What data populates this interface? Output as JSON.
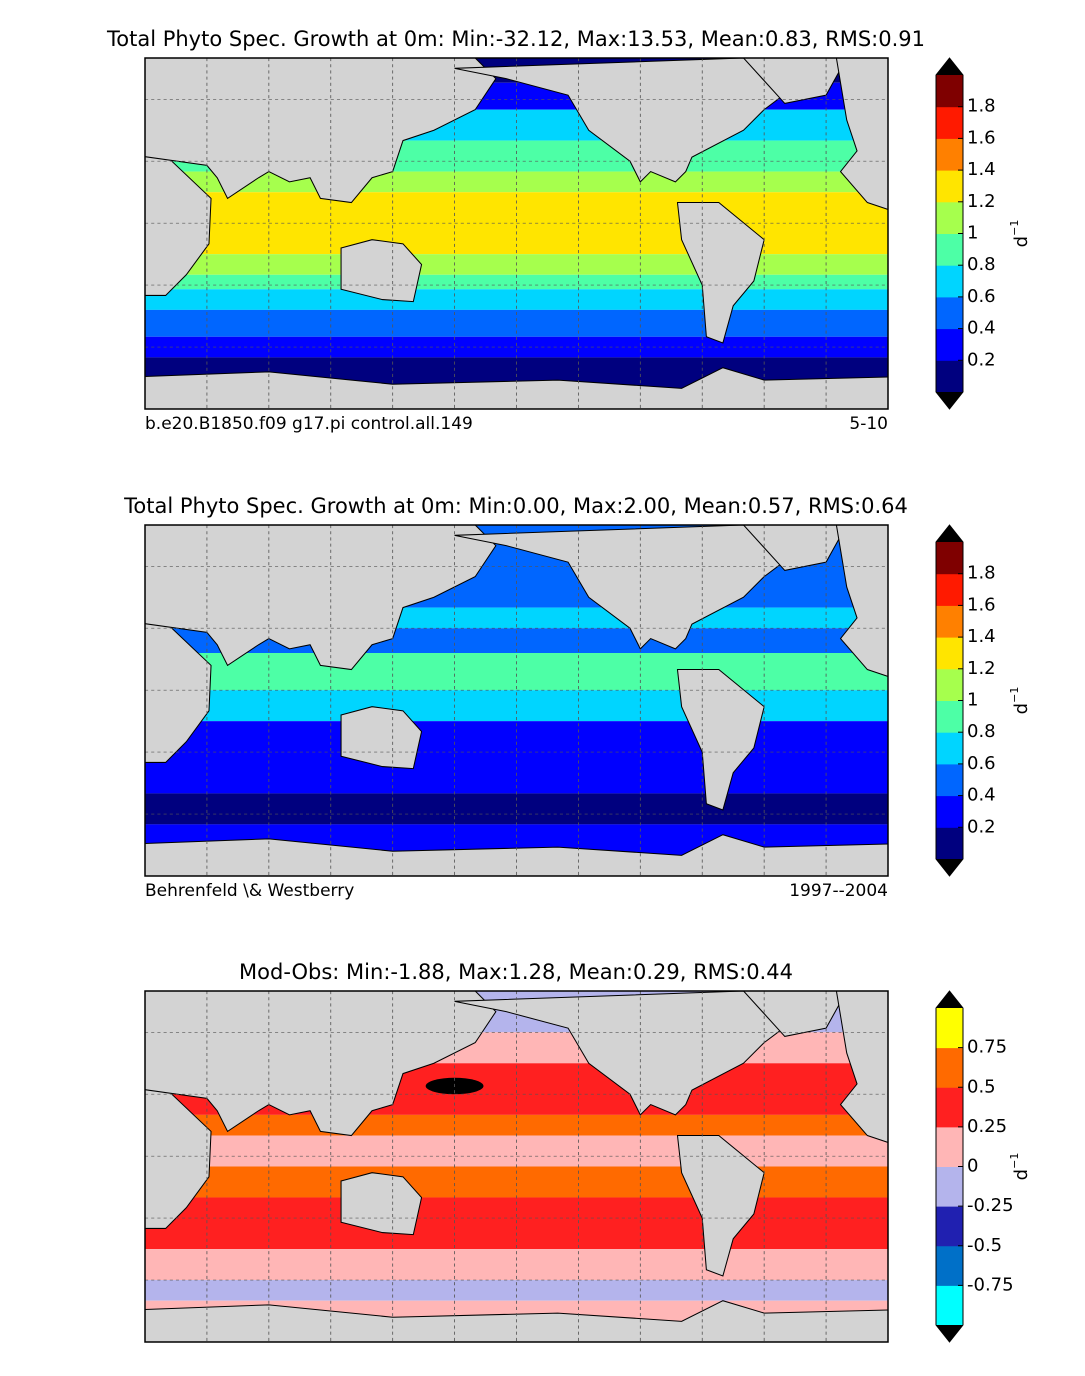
{
  "panels": [
    {
      "title": "Total Phyto Spec. Growth at 0m: Min:-32.12, Max:13.53, Mean:0.83, RMS:0.91",
      "left_note": "b.e20.B1850.f09 g17.pi control.all.149",
      "right_note": "5-10",
      "colorbar": {
        "ylim": [
          0,
          2
        ],
        "yticks": [
          0.2,
          0.4,
          0.6,
          0.8,
          1,
          1.2,
          1.4,
          1.6,
          1.8
        ],
        "colors": [
          "#00007f",
          "#0000ff",
          "#0066ff",
          "#00d5ff",
          "#4dffa6",
          "#a6ff4d",
          "#ffe500",
          "#ff8000",
          "#ff1a00",
          "#7f0000"
        ],
        "under_color": "#000000",
        "over_color": "#000000",
        "label": "d",
        "label_exponent": "−1"
      }
    },
    {
      "title": "Total Phyto Spec. Growth at 0m: Min:0.00, Max:2.00, Mean:0.57, RMS:0.64",
      "left_note": "Behrenfeld \\& Westberry",
      "right_note": "1997--2004",
      "colorbar": {
        "ylim": [
          0,
          2
        ],
        "yticks": [
          0.2,
          0.4,
          0.6,
          0.8,
          1,
          1.2,
          1.4,
          1.6,
          1.8
        ],
        "colors": [
          "#00007f",
          "#0000ff",
          "#0066ff",
          "#00d5ff",
          "#4dffa6",
          "#a6ff4d",
          "#ffe500",
          "#ff8000",
          "#ff1a00",
          "#7f0000"
        ],
        "under_color": "#000000",
        "over_color": "#000000",
        "label": "d",
        "label_exponent": "−1"
      }
    },
    {
      "title": "Mod-Obs: Min:-1.88, Max:1.28, Mean:0.29, RMS:0.44",
      "colorbar": {
        "ylim": [
          -1,
          1
        ],
        "yticks": [
          -0.75,
          -0.5,
          -0.25,
          0,
          0.25,
          0.5,
          0.75
        ],
        "colors": [
          "#00ffff",
          "#0070c8",
          "#2020b0",
          "#b4b4ec",
          "#ffb6b6",
          "#ff2020",
          "#ff6a00",
          "#ffff00"
        ],
        "under_color": "#000000",
        "over_color": "#000000",
        "label": "d",
        "label_exponent": "−1"
      }
    }
  ]
}
